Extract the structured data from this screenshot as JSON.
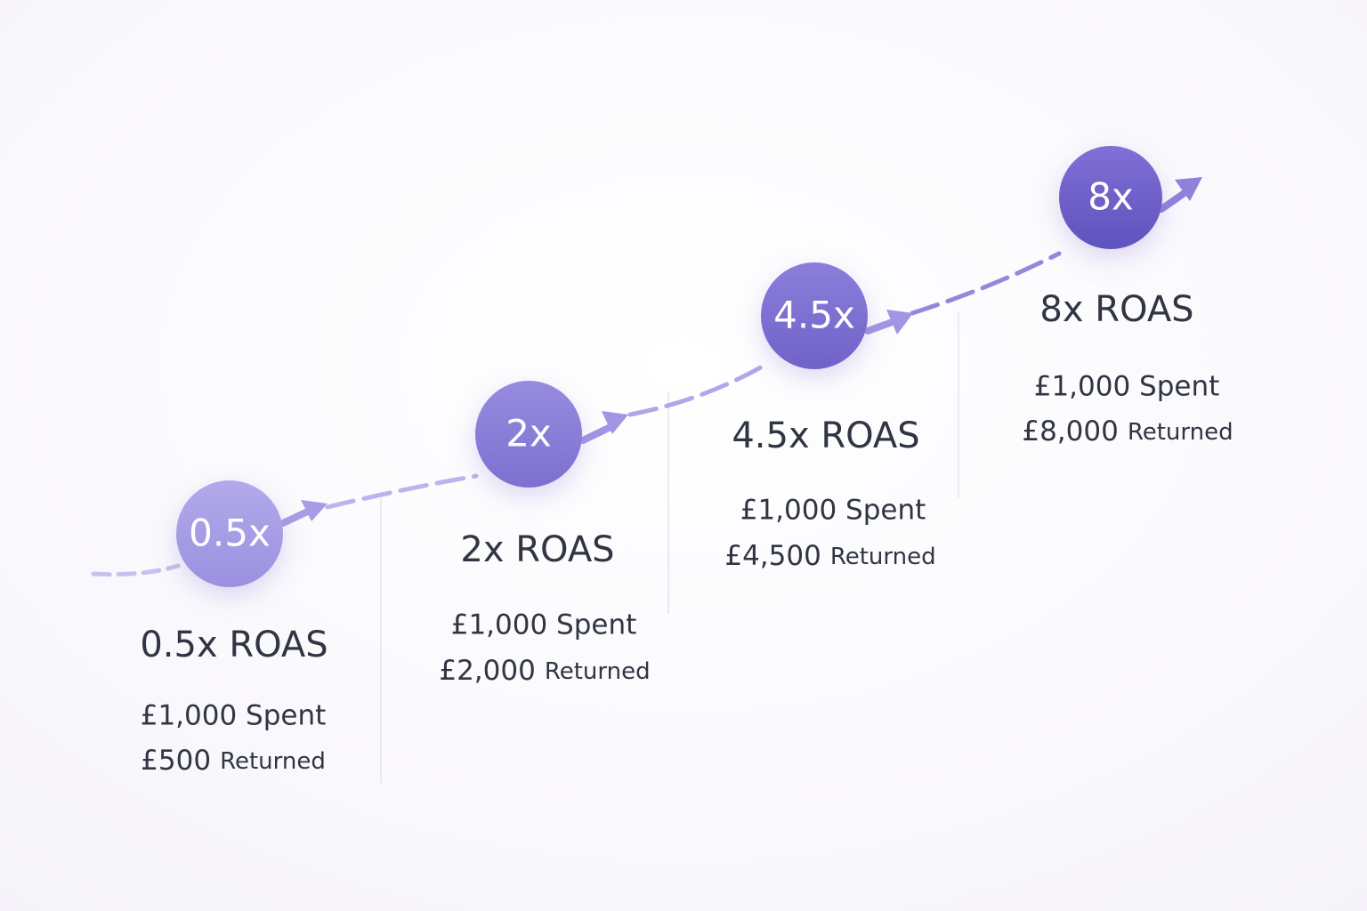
{
  "steps": [
    {
      "badge": "0.5x",
      "title": "0.5x ROAS",
      "spent": "£1,000 Spent",
      "returned_amount": "£500",
      "returned_label": "Returned"
    },
    {
      "badge": "2x",
      "title": "2x ROAS",
      "spent": "£1,000 Spent",
      "returned_amount": "£2,000",
      "returned_label": "Returned"
    },
    {
      "badge": "4.5x",
      "title": "4.5x ROAS",
      "spent": "£1,000 Spent",
      "returned_amount": "£4,500",
      "returned_label": "Returned"
    },
    {
      "badge": "8x",
      "title": "8x ROAS",
      "spent": "£1,000 Spent",
      "returned_amount": "£8,000",
      "returned_label": "Returned"
    }
  ]
}
